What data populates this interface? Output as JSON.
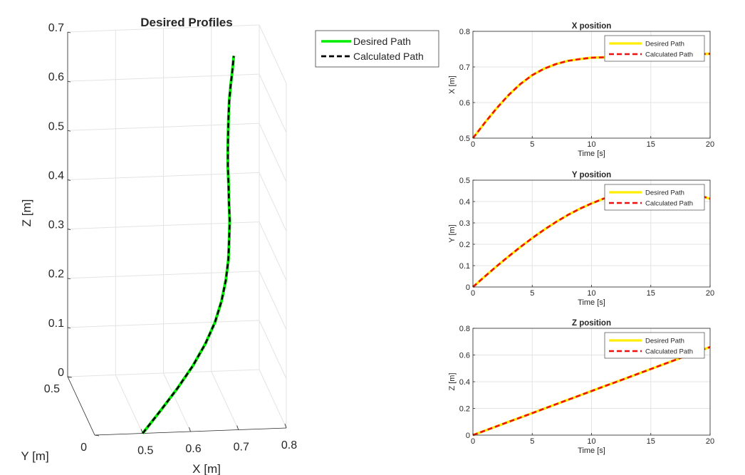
{
  "chart_data": [
    {
      "type": "line",
      "title": "Desired Profiles",
      "xlabel": "X [m]",
      "ylabel": "Y [m]",
      "zlabel": "Z [m]",
      "xlim": [
        0.4,
        0.8
      ],
      "ylim": [
        0,
        0.5
      ],
      "zlim": [
        0,
        0.7
      ],
      "xticks": [
        "0.5",
        "0.6",
        "0.7",
        "0.8"
      ],
      "yticks": [
        "0",
        "0.5"
      ],
      "zticks": [
        "0",
        "0.1",
        "0.2",
        "0.3",
        "0.4",
        "0.5",
        "0.6",
        "0.7"
      ],
      "grid": true,
      "legend": "outside-right",
      "series": [
        {
          "name": "Desired Path",
          "color": "#00ee00",
          "style": "solid"
        },
        {
          "name": "Calculated Path",
          "color": "#000000",
          "style": "dashed"
        }
      ],
      "trajectory": {
        "x": [
          0.5,
          0.543,
          0.584,
          0.621,
          0.652,
          0.677,
          0.695,
          0.708,
          0.717,
          0.722,
          0.726,
          0.727,
          0.728,
          0.728,
          0.729,
          0.73,
          0.731,
          0.732,
          0.734,
          0.736,
          0.737
        ],
        "y": [
          0.0,
          0.049,
          0.097,
          0.143,
          0.187,
          0.229,
          0.268,
          0.304,
          0.337,
          0.366,
          0.391,
          0.413,
          0.43,
          0.443,
          0.452,
          0.456,
          0.456,
          0.452,
          0.443,
          0.43,
          0.413
        ],
        "z": [
          0.0,
          0.033,
          0.066,
          0.099,
          0.132,
          0.165,
          0.198,
          0.231,
          0.264,
          0.297,
          0.33,
          0.363,
          0.396,
          0.429,
          0.462,
          0.495,
          0.528,
          0.561,
          0.594,
          0.627,
          0.66
        ]
      }
    },
    {
      "type": "line",
      "title": "X position",
      "xlabel": "Time [s]",
      "ylabel": "X [m]",
      "xlim": [
        0,
        20
      ],
      "ylim": [
        0.5,
        0.8
      ],
      "xticks": [
        "0",
        "5",
        "10",
        "15",
        "20"
      ],
      "yticks": [
        "0.5",
        "0.6",
        "0.7",
        "0.8"
      ],
      "grid": true,
      "legend": "top-right",
      "x": [
        0,
        1,
        2,
        3,
        4,
        5,
        6,
        7,
        8,
        9,
        10,
        11,
        12,
        13,
        14,
        15,
        16,
        17,
        18,
        19,
        20
      ],
      "series": [
        {
          "name": "Desired Path",
          "color": "#ffee00",
          "style": "solid",
          "values": [
            0.5,
            0.543,
            0.584,
            0.621,
            0.652,
            0.677,
            0.695,
            0.708,
            0.717,
            0.722,
            0.726,
            0.727,
            0.728,
            0.728,
            0.729,
            0.73,
            0.731,
            0.732,
            0.734,
            0.736,
            0.737
          ]
        },
        {
          "name": "Calculated Path",
          "color": "#ee1111",
          "style": "dashed",
          "values": [
            0.5,
            0.543,
            0.584,
            0.621,
            0.652,
            0.677,
            0.695,
            0.708,
            0.717,
            0.722,
            0.726,
            0.727,
            0.728,
            0.728,
            0.729,
            0.73,
            0.731,
            0.732,
            0.734,
            0.736,
            0.737
          ]
        }
      ]
    },
    {
      "type": "line",
      "title": "Y position",
      "xlabel": "Time [s]",
      "ylabel": "Y [m]",
      "xlim": [
        0,
        20
      ],
      "ylim": [
        0,
        0.5
      ],
      "xticks": [
        "0",
        "5",
        "10",
        "15",
        "20"
      ],
      "yticks": [
        "0",
        "0.1",
        "0.2",
        "0.3",
        "0.4",
        "0.5"
      ],
      "grid": true,
      "legend": "top-right",
      "x": [
        0,
        1,
        2,
        3,
        4,
        5,
        6,
        7,
        8,
        9,
        10,
        11,
        12,
        13,
        14,
        15,
        16,
        17,
        18,
        19,
        20
      ],
      "series": [
        {
          "name": "Desired Path",
          "color": "#ffee00",
          "style": "solid",
          "values": [
            0.0,
            0.049,
            0.097,
            0.143,
            0.187,
            0.229,
            0.268,
            0.304,
            0.337,
            0.366,
            0.391,
            0.413,
            0.43,
            0.443,
            0.452,
            0.456,
            0.456,
            0.452,
            0.443,
            0.43,
            0.413
          ]
        },
        {
          "name": "Calculated Path",
          "color": "#ee1111",
          "style": "dashed",
          "values": [
            0.0,
            0.049,
            0.097,
            0.143,
            0.187,
            0.229,
            0.268,
            0.304,
            0.337,
            0.366,
            0.391,
            0.413,
            0.43,
            0.443,
            0.452,
            0.456,
            0.456,
            0.452,
            0.443,
            0.43,
            0.413
          ]
        }
      ]
    },
    {
      "type": "line",
      "title": "Z position",
      "xlabel": "Time [s]",
      "ylabel": "Z [m]",
      "xlim": [
        0,
        20
      ],
      "ylim": [
        0,
        0.8
      ],
      "xticks": [
        "0",
        "5",
        "10",
        "15",
        "20"
      ],
      "yticks": [
        "0",
        "0.2",
        "0.4",
        "0.6",
        "0.8"
      ],
      "grid": true,
      "legend": "top-right",
      "x": [
        0,
        1,
        2,
        3,
        4,
        5,
        6,
        7,
        8,
        9,
        10,
        11,
        12,
        13,
        14,
        15,
        16,
        17,
        18,
        19,
        20
      ],
      "series": [
        {
          "name": "Desired Path",
          "color": "#ffee00",
          "style": "solid",
          "values": [
            0.0,
            0.033,
            0.066,
            0.099,
            0.132,
            0.165,
            0.198,
            0.231,
            0.264,
            0.297,
            0.33,
            0.363,
            0.396,
            0.429,
            0.462,
            0.495,
            0.528,
            0.561,
            0.594,
            0.627,
            0.66
          ]
        },
        {
          "name": "Calculated Path",
          "color": "#ee1111",
          "style": "dashed",
          "values": [
            0.0,
            0.033,
            0.066,
            0.099,
            0.132,
            0.165,
            0.198,
            0.231,
            0.264,
            0.297,
            0.33,
            0.363,
            0.396,
            0.429,
            0.462,
            0.495,
            0.528,
            0.561,
            0.594,
            0.627,
            0.66
          ]
        }
      ]
    }
  ]
}
